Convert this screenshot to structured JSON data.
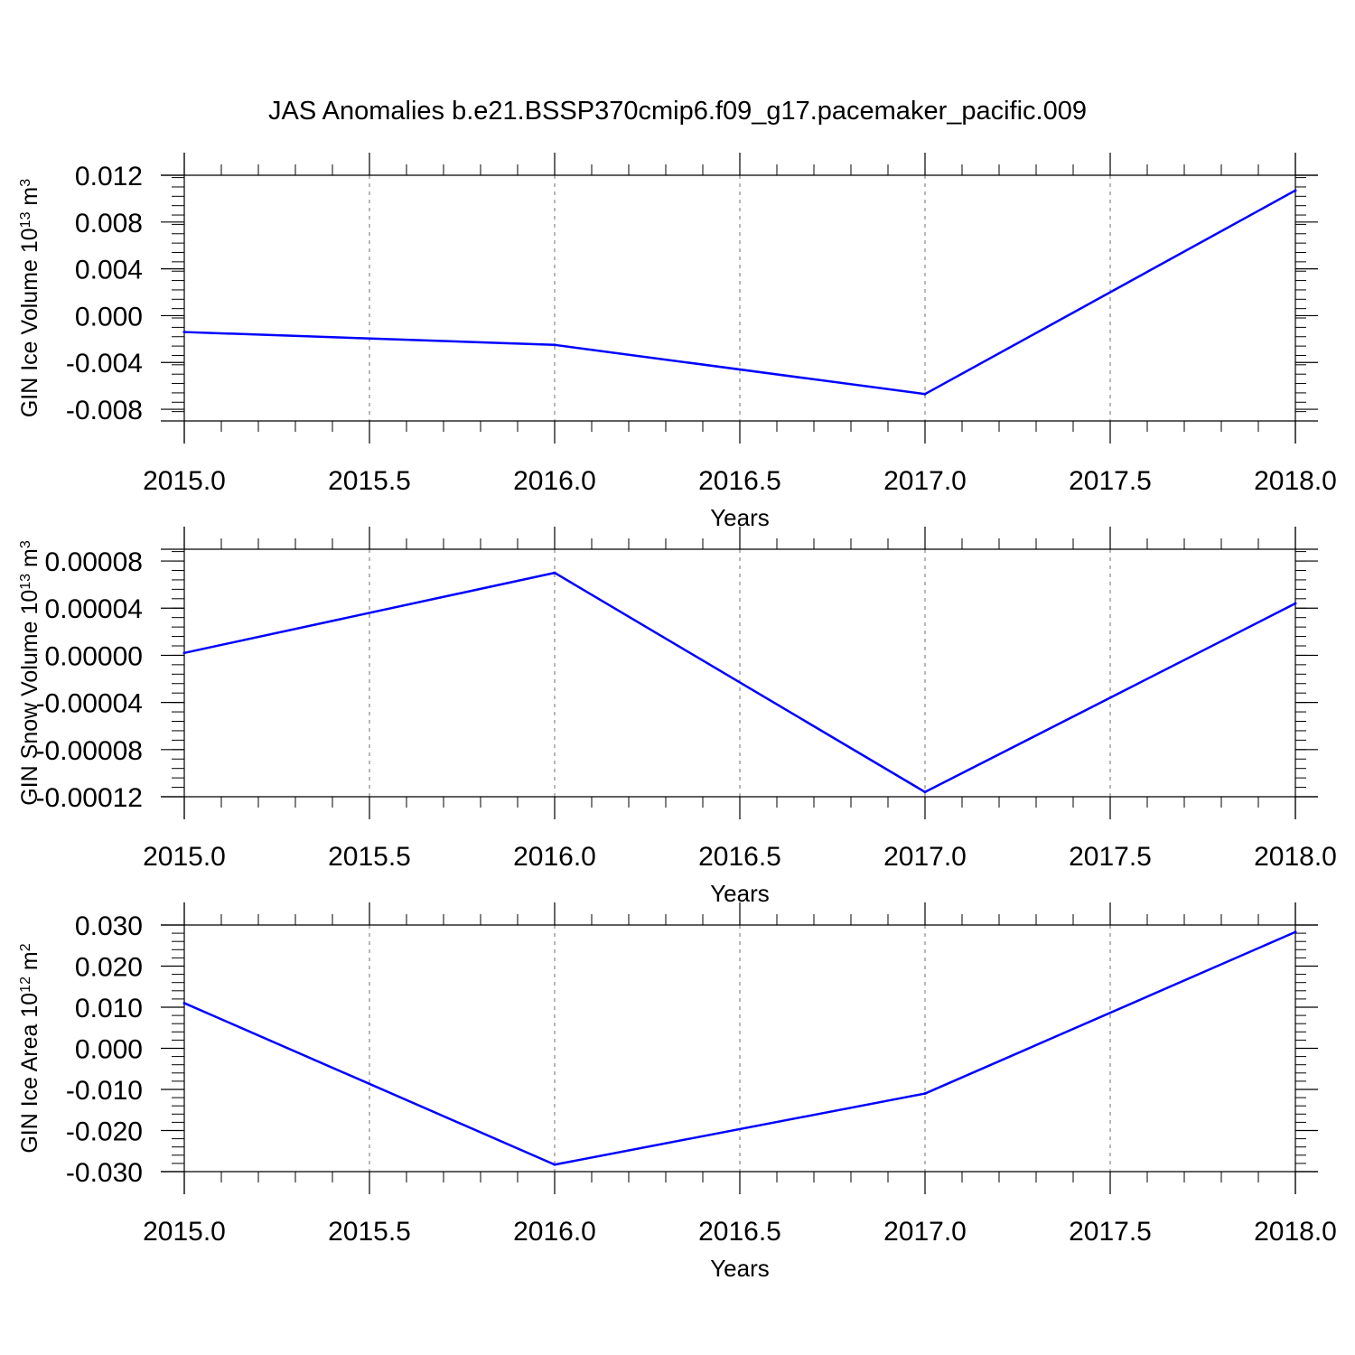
{
  "figure": {
    "title": "JAS Anomalies b.e21.BSSP370cmip6.f09_g17.pacemaker_pacific.009"
  },
  "chart_data": [
    {
      "type": "line",
      "title": "",
      "xlabel": "Years",
      "ylabel": {
        "base": "GIN Ice Volume 10",
        "exp": "13",
        "unit": " m",
        "unit_exp": "3"
      },
      "x": [
        2015,
        2016,
        2017,
        2018
      ],
      "xlim": [
        2015.0,
        2018.0
      ],
      "xticks": [
        2015.0,
        2015.5,
        2016.0,
        2016.5,
        2017.0,
        2017.5,
        2018.0
      ],
      "xtick_labels": [
        "2015.0",
        "2015.5",
        "2016.0",
        "2016.5",
        "2017.0",
        "2017.5",
        "2018.0"
      ],
      "ylim": [
        -0.009,
        0.012
      ],
      "yticks": [
        -0.008,
        -0.004,
        0.0,
        0.004,
        0.008,
        0.012
      ],
      "ytick_labels": [
        "-0.008",
        "-0.004",
        "0.000",
        "0.004",
        "0.008",
        "0.012"
      ],
      "grid": "vertical dashed",
      "series": [
        {
          "values": [
            -0.0014,
            -0.0025,
            -0.0067,
            0.0107
          ],
          "color": "#0000ff"
        }
      ]
    },
    {
      "type": "line",
      "title": "",
      "xlabel": "Years",
      "ylabel": {
        "base": "GIN Snow Volume 10",
        "exp": "13",
        "unit": " m",
        "unit_exp": "3"
      },
      "x": [
        2015,
        2016,
        2017,
        2018
      ],
      "xlim": [
        2015.0,
        2018.0
      ],
      "xticks": [
        2015.0,
        2015.5,
        2016.0,
        2016.5,
        2017.0,
        2017.5,
        2018.0
      ],
      "xtick_labels": [
        "2015.0",
        "2015.5",
        "2016.0",
        "2016.5",
        "2017.0",
        "2017.5",
        "2018.0"
      ],
      "ylim": [
        -0.00012,
        9e-05
      ],
      "yticks": [
        -0.00012,
        -8e-05,
        -4e-05,
        0.0,
        4e-05,
        8e-05
      ],
      "ytick_labels": [
        "-0.00012",
        "-0.00008",
        "-0.00004",
        "0.00000",
        "0.00004",
        "0.00008"
      ],
      "grid": "vertical dashed",
      "series": [
        {
          "values": [
            2e-06,
            7e-05,
            -0.000116,
            4.4e-05
          ],
          "color": "#0000ff"
        }
      ]
    },
    {
      "type": "line",
      "title": "",
      "xlabel": "Years",
      "ylabel": {
        "base": "GIN Ice Area 10",
        "exp": "12",
        "unit": " m",
        "unit_exp": "2"
      },
      "x": [
        2015,
        2016,
        2017,
        2018
      ],
      "xlim": [
        2015.0,
        2018.0
      ],
      "xticks": [
        2015.0,
        2015.5,
        2016.0,
        2016.5,
        2017.0,
        2017.5,
        2018.0
      ],
      "xtick_labels": [
        "2015.0",
        "2015.5",
        "2016.0",
        "2016.5",
        "2017.0",
        "2017.5",
        "2018.0"
      ],
      "ylim": [
        -0.03,
        0.03
      ],
      "yticks": [
        -0.03,
        -0.02,
        -0.01,
        0.0,
        0.01,
        0.02,
        0.03
      ],
      "ytick_labels": [
        "-0.030",
        "-0.020",
        "-0.010",
        "0.000",
        "0.010",
        "0.020",
        "0.030"
      ],
      "grid": "vertical dashed",
      "series": [
        {
          "values": [
            0.011,
            -0.0283,
            -0.011,
            0.0283
          ],
          "color": "#0000ff"
        }
      ]
    }
  ]
}
